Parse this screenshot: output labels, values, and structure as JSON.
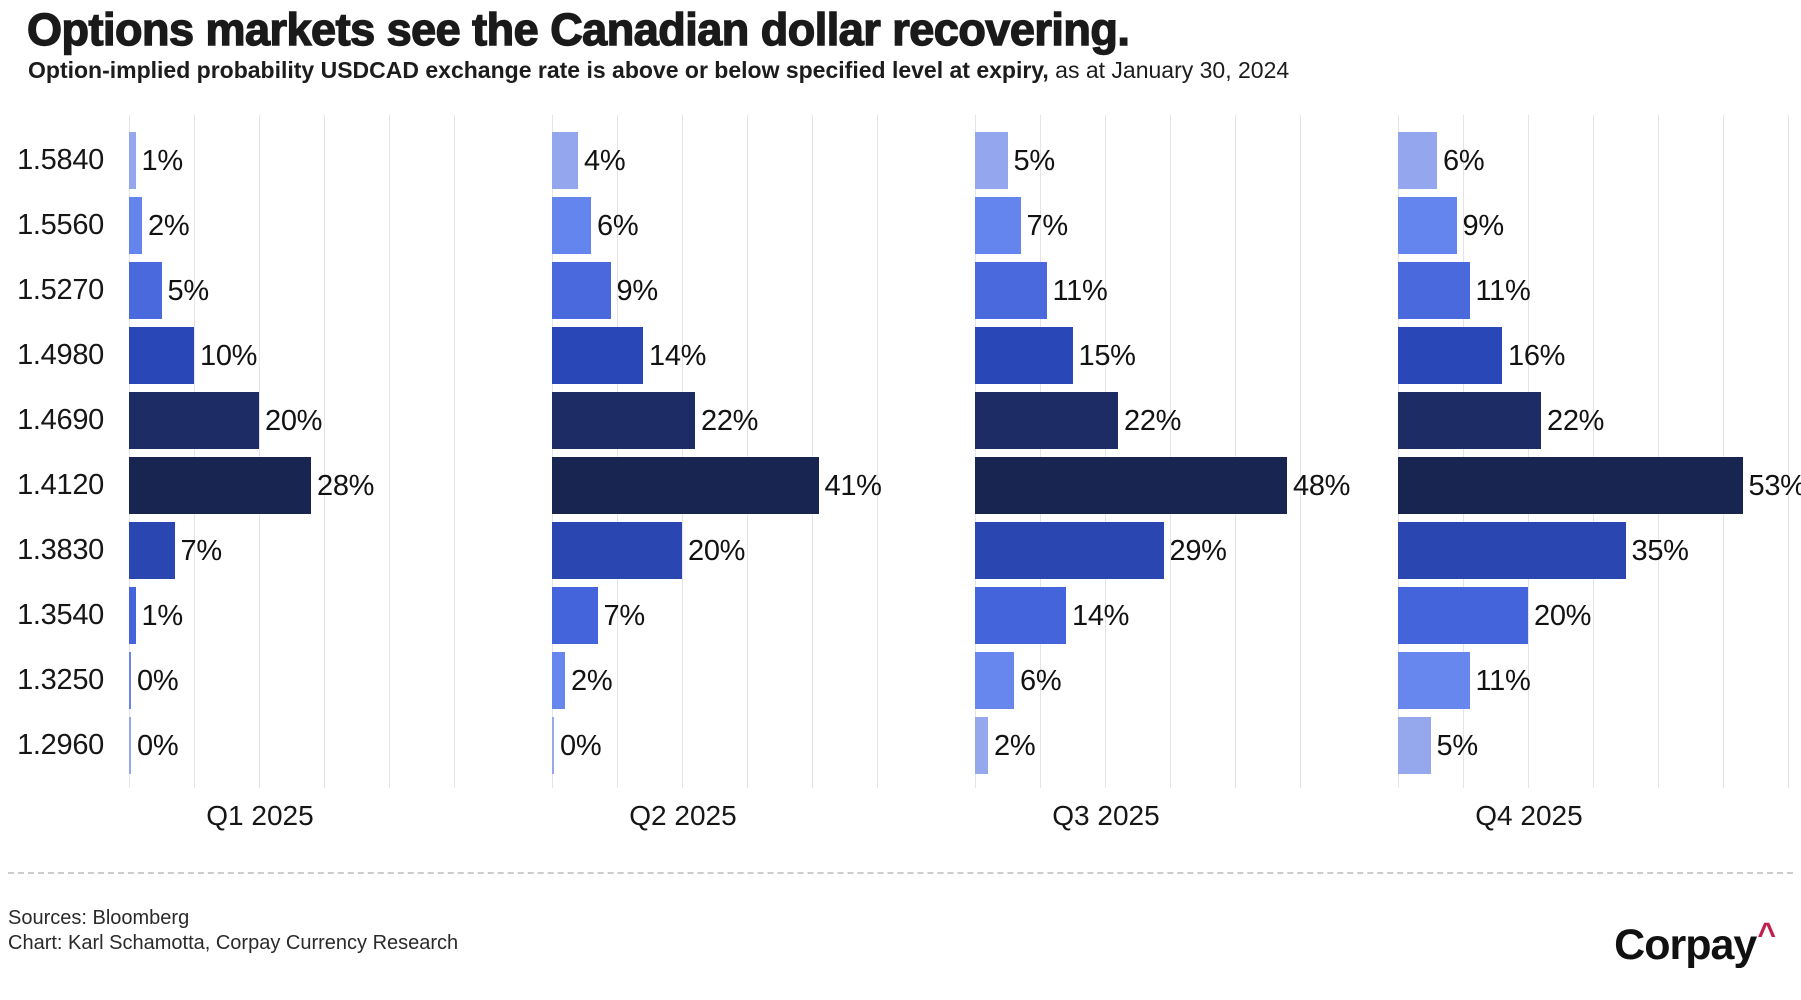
{
  "header": {
    "title": "Options markets see the Canadian dollar recovering.",
    "subtitle_bold": "Option-implied probability USDCAD exchange rate is above or below specified level at expiry,",
    "subtitle_regular": " as at January 30, 2024"
  },
  "chart_data": {
    "type": "bar",
    "orientation": "horizontal",
    "title": "Options markets see the Canadian dollar recovering.",
    "subtitle": "Option-implied probability USDCAD exchange rate is above or below specified level at expiry, as at January 30, 2024",
    "categories": [
      "1.5840",
      "1.5560",
      "1.5270",
      "1.4980",
      "1.4690",
      "1.4120",
      "1.3830",
      "1.3540",
      "1.3250",
      "1.2960"
    ],
    "series": [
      {
        "name": "Q1 2025",
        "values": [
          1,
          2,
          5,
          10,
          20,
          28,
          7,
          1,
          0,
          0
        ],
        "xlim": [
          0,
          50
        ]
      },
      {
        "name": "Q2 2025",
        "values": [
          4,
          6,
          9,
          14,
          22,
          41,
          20,
          7,
          2,
          0
        ],
        "xlim": [
          0,
          50
        ]
      },
      {
        "name": "Q3 2025",
        "values": [
          5,
          7,
          11,
          15,
          22,
          48,
          29,
          14,
          6,
          2
        ],
        "xlim": [
          0,
          50
        ]
      },
      {
        "name": "Q4 2025",
        "values": [
          6,
          9,
          11,
          16,
          22,
          53,
          35,
          20,
          11,
          5
        ],
        "xlim": [
          0,
          60
        ]
      }
    ],
    "value_suffix": "%",
    "gridline_step_pct": 10,
    "grid": true,
    "legend": "none",
    "row_colors": [
      "#94a6ee",
      "#6585ee",
      "#4a69dc",
      "#2a47b8",
      "#1e2c66",
      "#182551",
      "#2a46b0",
      "#4464dc",
      "#6787ef",
      "#95a8ee"
    ],
    "gridline_color": "#e4e4e6"
  },
  "footer": {
    "sources": "Sources: Bloomberg",
    "chart_credit": "Chart: Karl Schamotta, Corpay Currency Research",
    "logo_text": "Corpay",
    "logo_caret": "^",
    "logo_caret_color": "#c01e4e"
  }
}
